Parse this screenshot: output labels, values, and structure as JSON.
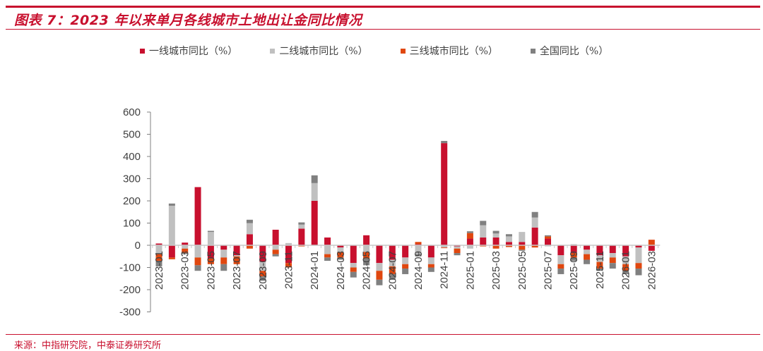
{
  "header": {
    "title": "图表 7：2023 年以来单月各线城市土地出让金同比情况"
  },
  "footer": {
    "source": "来源：中指研究院，中泰证券研究所"
  },
  "colors": {
    "tier1": "#c8102e",
    "tier2": "#c0c0c0",
    "tier3": "#e0470f",
    "national": "#808080",
    "accent": "#c8102e"
  },
  "legend": [
    {
      "label": "一线城市同比（%）",
      "color": "#c8102e"
    },
    {
      "label": "二线城市同比（%）",
      "color": "#c0c0c0"
    },
    {
      "label": "三线城市同比（%）",
      "color": "#e0470f"
    },
    {
      "label": "全国同比（%）",
      "color": "#808080"
    }
  ],
  "chart_data": {
    "type": "bar",
    "stacked": true,
    "title": "2023 年以来单月各线城市土地出让金同比情况",
    "xlabel": "",
    "ylabel": "",
    "ylim": [
      -300,
      600
    ],
    "yticks": [
      600,
      500,
      400,
      300,
      200,
      100,
      0,
      -100,
      -200,
      -300
    ],
    "grid": false,
    "legend_position": "top",
    "categories": [
      "2023-01",
      "2023-02",
      "2023-03",
      "2023-04",
      "2023-05",
      "2023-06",
      "2023-07",
      "2023-08",
      "2023-09",
      "2023-10",
      "2023-11",
      "2023-12",
      "2024-01",
      "2024-02",
      "2024-03",
      "2024-04",
      "2024-05",
      "2024-06",
      "2024-07",
      "2024-08",
      "2024-09",
      "2024-10",
      "2024-11",
      "2024-12",
      "2025-01",
      "2025-02",
      "2025-03",
      "2025-04",
      "2025-05",
      "2025-06",
      "2025-07",
      "2025-08",
      "2025-09",
      "2025-10",
      "2025-11",
      "2025-12",
      "2026-01",
      "2026-02",
      "2026-03"
    ],
    "xtick_labels": [
      "2023-01",
      "2023-03",
      "2023-05",
      "2023-07",
      "2023-09",
      "2023-11",
      "2024-01",
      "2024-03",
      "2024-05",
      "2024-07",
      "2024-09",
      "2024-11",
      "2025-01",
      "2025-03",
      "2025-05",
      "2025-07",
      "2025-09",
      "2025-11",
      "2026-01",
      "2026-03"
    ],
    "series": [
      {
        "name": "一线城市同比（%）",
        "values": [
          8,
          -55,
          12,
          262,
          -60,
          -20,
          -45,
          50,
          -75,
          70,
          -80,
          75,
          200,
          35,
          -10,
          -80,
          45,
          -80,
          -65,
          -55,
          5,
          -55,
          460,
          -5,
          30,
          35,
          35,
          15,
          15,
          80,
          30,
          -45,
          -35,
          -20,
          -45,
          -35,
          -50,
          -10,
          -25
        ]
      },
      {
        "name": "二线城市同比（%）",
        "values": [
          -40,
          178,
          -15,
          -55,
          60,
          -35,
          -5,
          50,
          -40,
          -20,
          10,
          18,
          80,
          -40,
          -20,
          -20,
          -30,
          -35,
          -30,
          -30,
          -40,
          -30,
          -10,
          -10,
          -15,
          55,
          18,
          25,
          45,
          45,
          -5,
          -40,
          5,
          -20,
          -30,
          -20,
          -35,
          -70,
          0
        ]
      },
      {
        "name": "三线城市同比（%）",
        "values": [
          -30,
          -8,
          -20,
          -35,
          -25,
          -30,
          -35,
          -15,
          -25,
          -20,
          -20,
          -5,
          0,
          -15,
          -25,
          -20,
          -30,
          -40,
          -35,
          -20,
          10,
          -15,
          -3,
          -20,
          25,
          -5,
          -15,
          -8,
          -20,
          -10,
          10,
          -20,
          -20,
          -25,
          -30,
          -25,
          -30,
          -25,
          25
        ]
      },
      {
        "name": "全国同比（%）",
        "values": [
          -25,
          10,
          -5,
          -25,
          5,
          -30,
          0,
          15,
          -20,
          -10,
          0,
          10,
          35,
          -15,
          -10,
          -25,
          -30,
          -25,
          -25,
          -25,
          -10,
          -20,
          10,
          -10,
          8,
          20,
          12,
          10,
          -5,
          25,
          5,
          -25,
          -15,
          -20,
          -10,
          -25,
          -15,
          -30,
          0
        ]
      }
    ]
  }
}
